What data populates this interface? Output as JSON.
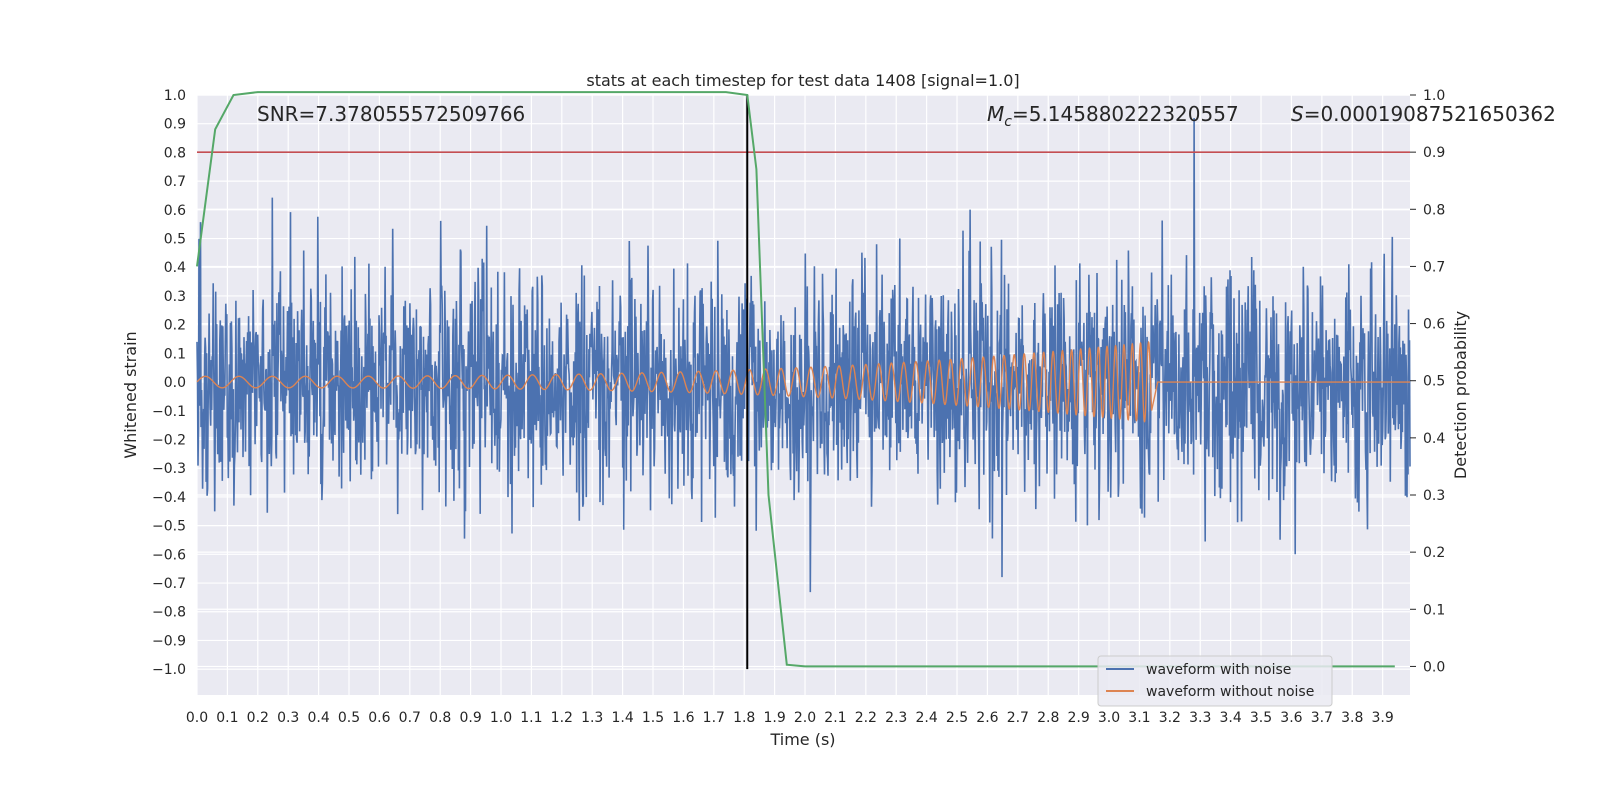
{
  "chart_data": {
    "type": "line",
    "title": "stats at each timestep for test data 1408 [signal=1.0]",
    "xlabel": "Time (s)",
    "ylabel": "Whitened strain",
    "ylabel_right": "Detection probability",
    "xlim": [
      0.0,
      3.99
    ],
    "ylim": [
      -1.09,
      1.0
    ],
    "ylim_right": [
      -0.05,
      1.0
    ],
    "x_ticks": [
      "0.0",
      "0.1",
      "0.2",
      "0.3",
      "0.4",
      "0.5",
      "0.6",
      "0.7",
      "0.8",
      "0.9",
      "1.0",
      "1.1",
      "1.2",
      "1.3",
      "1.4",
      "1.5",
      "1.6",
      "1.7",
      "1.8",
      "1.9",
      "2.0",
      "2.1",
      "2.2",
      "2.3",
      "2.4",
      "2.5",
      "2.6",
      "2.7",
      "2.8",
      "2.9",
      "3.0",
      "3.1",
      "3.2",
      "3.3",
      "3.4",
      "3.5",
      "3.6",
      "3.7",
      "3.8",
      "3.9"
    ],
    "y_ticks": [
      "1.0",
      "0.9",
      "0.8",
      "0.7",
      "0.6",
      "0.5",
      "0.4",
      "0.3",
      "0.2",
      "0.1",
      "0.0",
      "−0.1",
      "−0.2",
      "−0.3",
      "−0.4",
      "−0.5",
      "−0.6",
      "−0.7",
      "−0.8",
      "−0.9",
      "−1.0"
    ],
    "y_ticks_right": [
      "1.0",
      "0.9",
      "0.8",
      "0.7",
      "0.6",
      "0.5",
      "0.4",
      "0.3",
      "0.2",
      "0.1",
      "0.0"
    ],
    "annotations": {
      "snr": "SNR=7.378055572509766",
      "mc_symbol": "M",
      "mc_sub": "c",
      "mc_value": "=5.145880222320557",
      "s_symbol": "S",
      "s_value": "=0.00019087521650362"
    },
    "threshold_line": {
      "axis": "right",
      "value": 0.9,
      "color": "#c44e52"
    },
    "merger_time": 1.81,
    "noisy_waveform": {
      "name": "waveform with noise",
      "color": "#4c72b0",
      "amplitude_sd": 0.2,
      "seed": 1408,
      "duration": 3.99
    },
    "clean_waveform": {
      "name": "waveform without noise",
      "color": "#dd8452",
      "f_start": 9,
      "f_end": 38,
      "amp_start": 0.02,
      "amp_end": 0.14,
      "t_merger": 3.14
    },
    "detection_probability": {
      "name": "Detection probability",
      "color": "#55a868",
      "x": [
        0.0,
        0.06,
        0.12,
        0.2,
        0.3,
        0.5,
        1.0,
        1.5,
        1.74,
        1.81,
        1.84,
        1.88,
        1.94,
        2.0,
        2.05,
        2.5,
        3.0,
        3.5,
        3.94
      ],
      "y": [
        0.7,
        0.94,
        1.0,
        1.005,
        1.005,
        1.005,
        1.005,
        1.005,
        1.005,
        1.0,
        0.87,
        0.3,
        0.003,
        0.0,
        0.0,
        0.0,
        0.0,
        0.0,
        0.0
      ]
    },
    "legend": {
      "position": "lower right",
      "items": [
        {
          "label": "waveform with noise",
          "color": "#4c72b0"
        },
        {
          "label": "waveform without noise",
          "color": "#dd8452"
        }
      ]
    },
    "style": {
      "plot_background": "#eaeaf2",
      "grid": true,
      "grid_color": "#ffffff"
    }
  }
}
